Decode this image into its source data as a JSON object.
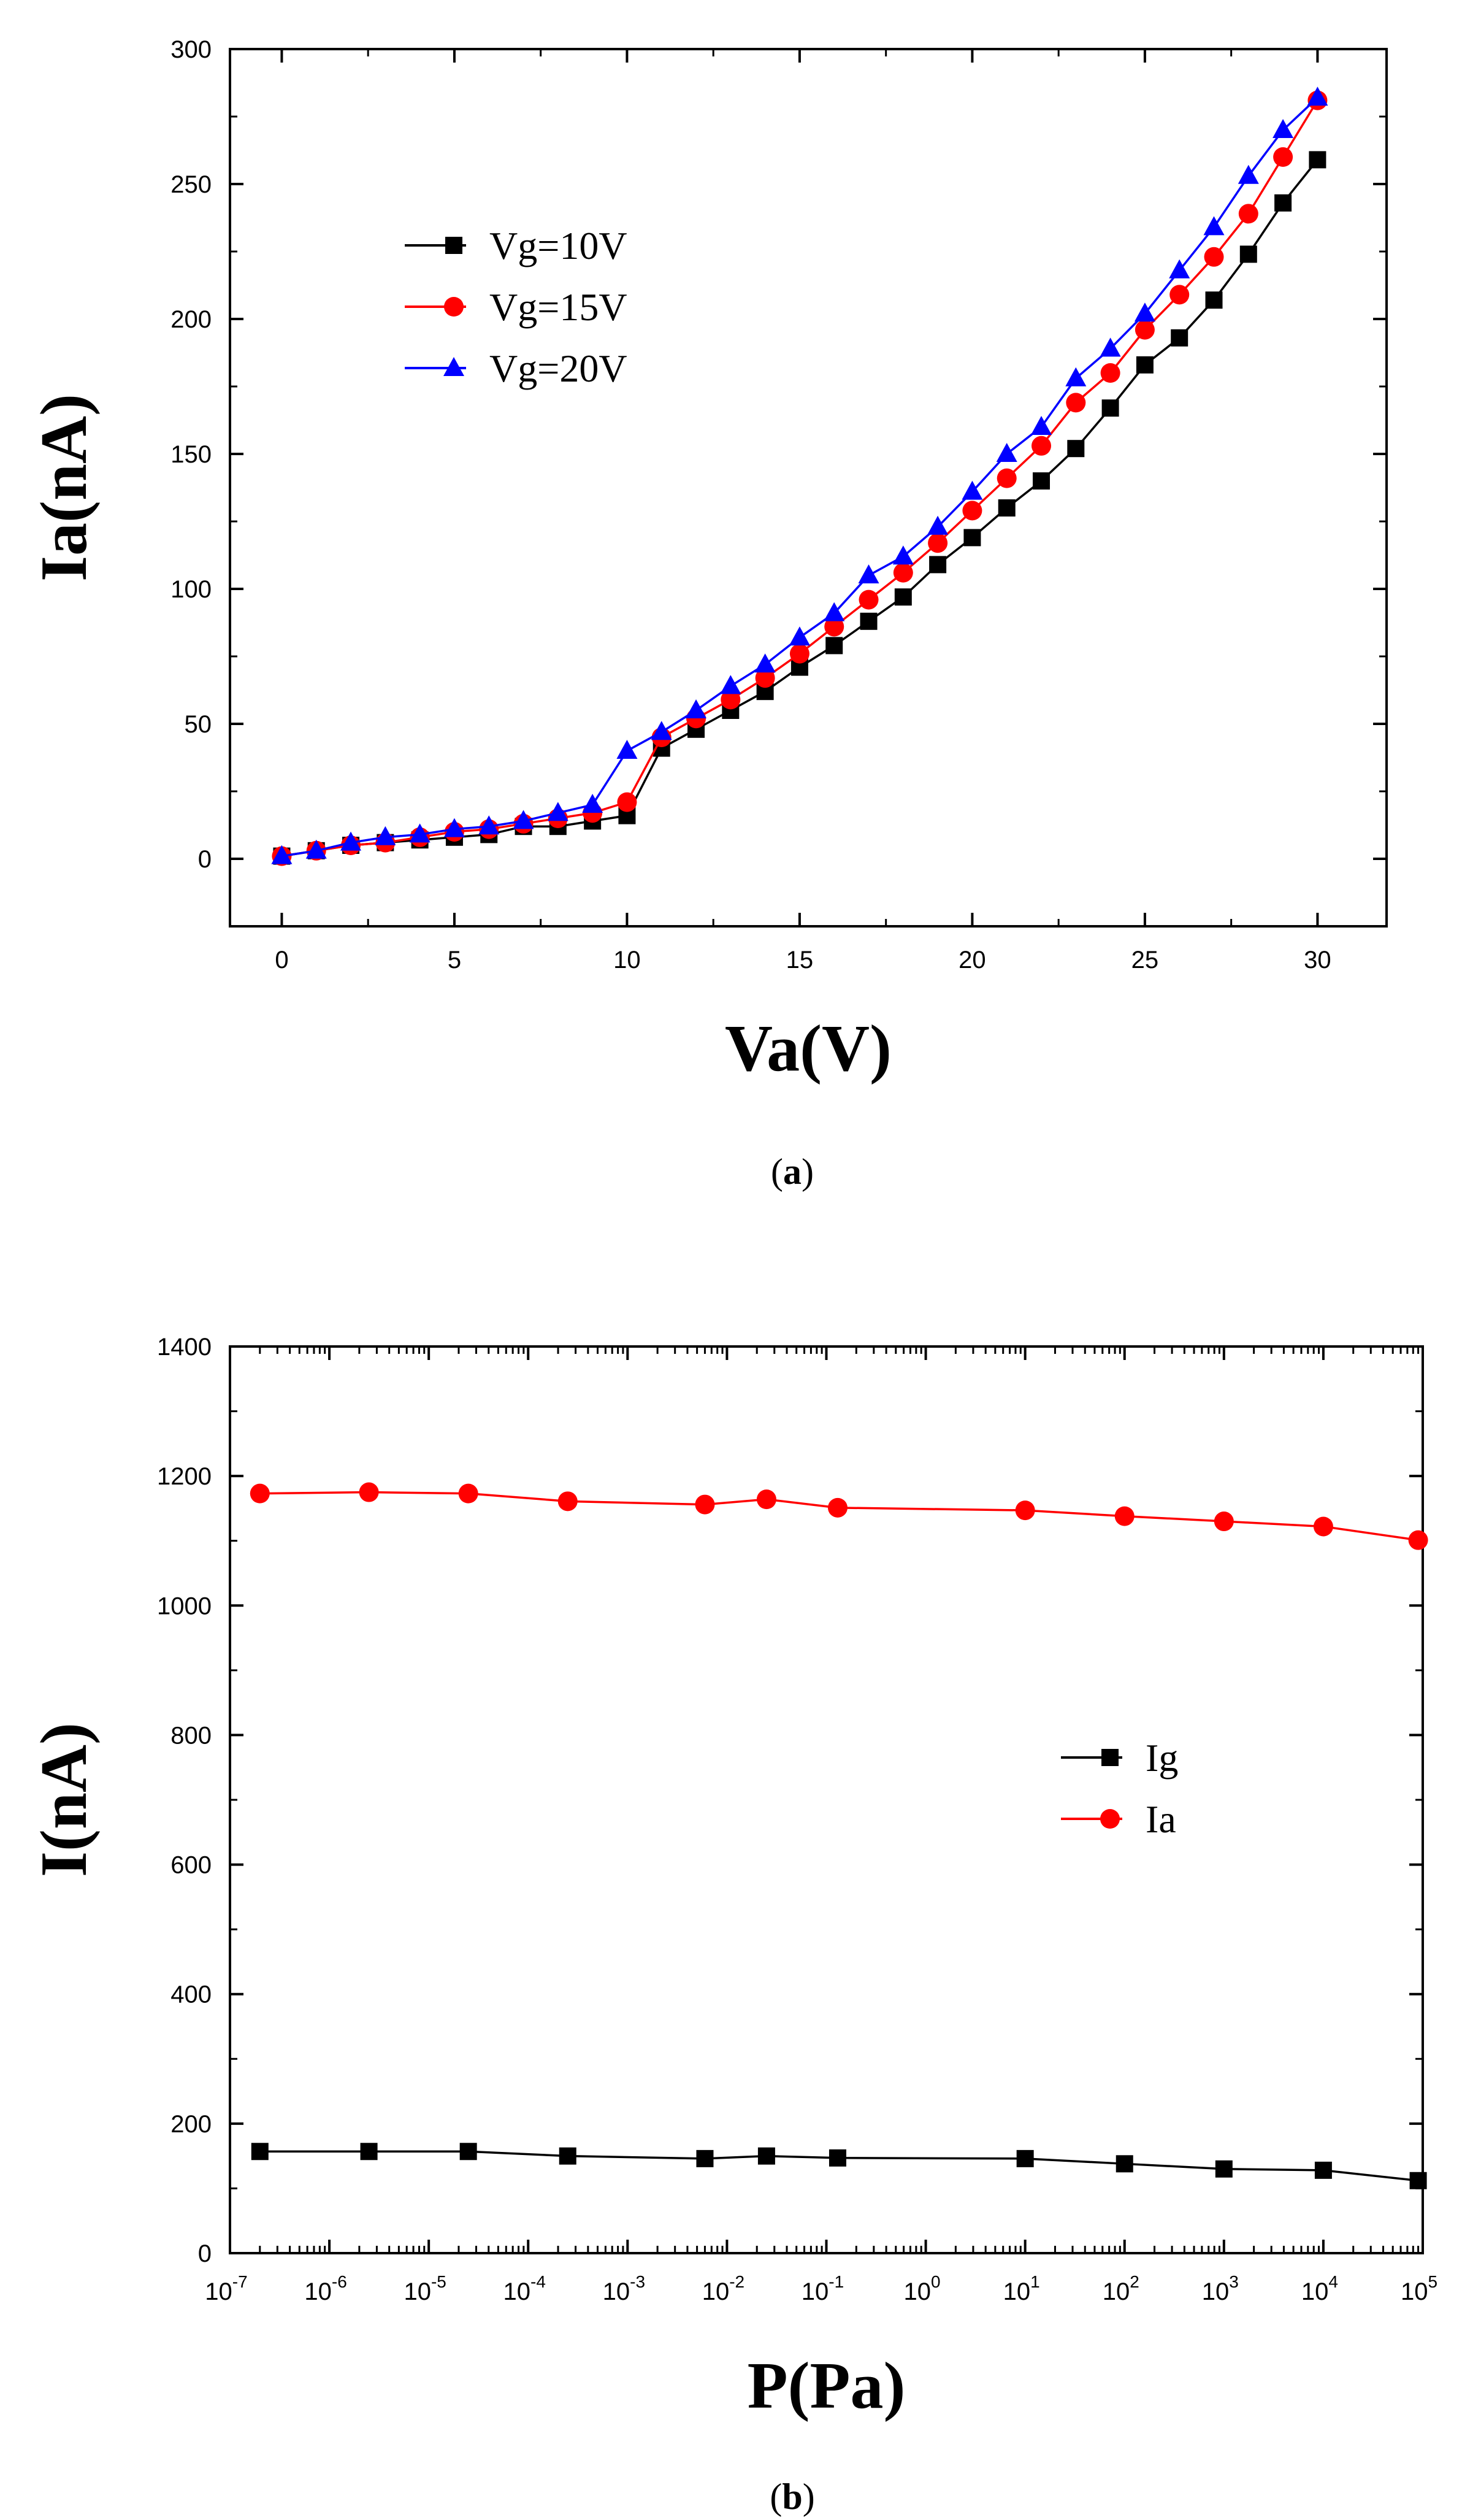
{
  "colors": {
    "black": "#000000",
    "red": "#ff0000",
    "blue": "#0000ff"
  },
  "chart_data": [
    {
      "type": "line",
      "panel_label": {
        "open": "(",
        "letter": "a",
        "close": ")"
      },
      "xlabel": "Va(V)",
      "ylabel": "Ia(nA)",
      "xlim": [
        -1.5,
        32
      ],
      "ylim": [
        -25,
        300
      ],
      "x_ticks": [
        0,
        5,
        10,
        15,
        20,
        25,
        30
      ],
      "y_ticks": [
        0,
        50,
        100,
        150,
        200,
        250,
        300
      ],
      "x_minor_step": 2.5,
      "y_minor_step": 25,
      "legend_position": "upper-left",
      "x": [
        0,
        1,
        2,
        3,
        4,
        5,
        6,
        7,
        8,
        9,
        10,
        11,
        12,
        13,
        14,
        15,
        16,
        17,
        18,
        19,
        20,
        21,
        22,
        23,
        24,
        25,
        26,
        27,
        28,
        29,
        30
      ],
      "series": [
        {
          "name": "Vg=10V",
          "color": "#000000",
          "marker": "square",
          "values": [
            1,
            3,
            5,
            6,
            7,
            8,
            9,
            12,
            12,
            14,
            16,
            41,
            48,
            55,
            62,
            71,
            79,
            88,
            97,
            109,
            119,
            130,
            140,
            152,
            167,
            183,
            193,
            207,
            224,
            243,
            259
          ]
        },
        {
          "name": "Vg=15V",
          "color": "#ff0000",
          "marker": "circle",
          "values": [
            1,
            3,
            5,
            6,
            8,
            10,
            11,
            13,
            15,
            17,
            21,
            45,
            52,
            59,
            67,
            76,
            86,
            96,
            106,
            117,
            129,
            141,
            153,
            169,
            180,
            196,
            209,
            223,
            239,
            260,
            281
          ]
        },
        {
          "name": "Vg=20V",
          "color": "#0000ff",
          "marker": "triangle",
          "values": [
            1,
            3,
            6,
            8,
            9,
            11,
            12,
            14,
            17,
            20,
            40,
            47,
            55,
            64,
            72,
            82,
            91,
            105,
            112,
            123,
            136,
            150,
            160,
            178,
            189,
            202,
            218,
            234,
            253,
            270,
            282
          ]
        }
      ]
    },
    {
      "type": "line",
      "panel_label": {
        "open": "(",
        "letter": "b",
        "close": ")"
      },
      "xlabel": "P(Pa)",
      "ylabel": "I(nA)",
      "x_scale": "log",
      "xlim_exp": [
        -7,
        5
      ],
      "ylim": [
        0,
        1400
      ],
      "x_tick_exponents": [
        "-7",
        "-6",
        "-5",
        "-4",
        "-3",
        "-2",
        "-1",
        "0",
        "1",
        "2",
        "3",
        "4",
        "5"
      ],
      "x_tick_base": "10",
      "y_ticks": [
        0,
        200,
        400,
        600,
        800,
        1000,
        1200,
        1400
      ],
      "y_minor_step": 100,
      "legend_position": "center-right",
      "x": [
        2e-07,
        2.5e-06,
        2.5e-05,
        0.00025,
        0.006,
        0.025,
        0.13,
        10,
        100,
        1000,
        10000,
        90000
      ],
      "series": [
        {
          "name": "Ig",
          "color": "#000000",
          "marker": "square",
          "values": [
            157,
            157,
            157,
            150,
            146,
            150,
            147,
            146,
            138,
            130,
            128,
            112
          ]
        },
        {
          "name": "Ia",
          "color": "#ff0000",
          "marker": "circle",
          "values": [
            1173,
            1175,
            1173,
            1161,
            1156,
            1164,
            1151,
            1147,
            1138,
            1130,
            1122,
            1101
          ]
        }
      ]
    }
  ]
}
